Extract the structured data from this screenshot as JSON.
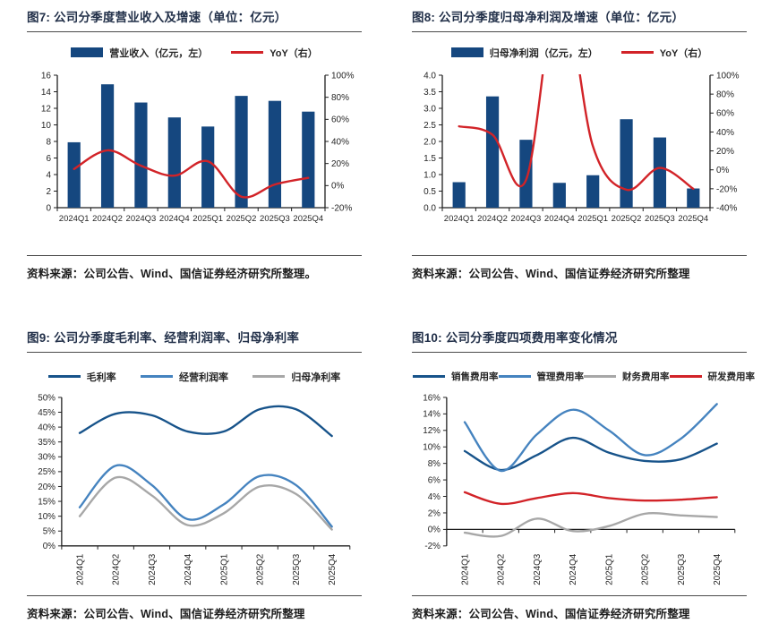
{
  "colors": {
    "bar_navy": "#15477F",
    "line_dark_blue": "#17538A",
    "line_light_blue": "#4583BF",
    "line_gray": "#A7A7A7",
    "line_red": "#D22328",
    "axis": "#1f1f1f",
    "tick_text": "#262626",
    "title_text": "#223049",
    "rule": "#4a4a4a"
  },
  "panels": [
    {
      "title": "图7: 公司分季度营业收入及增速（单位：亿元）",
      "source": "资料来源：公司公告、Wind、国信证券经济研究所整理。"
    },
    {
      "title": "图8: 公司分季度归母净利润及增速（单位：亿元）",
      "source": "资料来源：公司公告、Wind、国信证券经济研究所整理"
    },
    {
      "title": "图9: 公司分季度毛利率、经营利润率、归母净利率",
      "source": "资料来源：公司公告、Wind、国信证券经济研究所整理"
    },
    {
      "title": "图10: 公司分季度四项费用率变化情况",
      "source": "资料来源：公司公告、Wind、国信证券经济研究所整理"
    }
  ],
  "chart_data": [
    {
      "type": "bar",
      "title": "图7: 公司分季度营业收入及增速（单位：亿元）",
      "categories": [
        "2024Q1",
        "2024Q2",
        "2024Q3",
        "2024Q4",
        "2025Q1",
        "2025Q2",
        "2025Q3",
        "2025Q4"
      ],
      "series": [
        {
          "name": "营业收入（亿元，左）",
          "kind": "bar",
          "axis": "left",
          "color": "#15477F",
          "values": [
            7.9,
            14.9,
            12.7,
            10.9,
            9.8,
            13.5,
            12.9,
            11.6
          ]
        },
        {
          "name": "YoY（右）",
          "kind": "line",
          "axis": "right",
          "color": "#D22328",
          "unit": "%",
          "values": [
            15,
            32,
            18,
            9,
            22,
            -10,
            1,
            7
          ]
        }
      ],
      "left_axis": {
        "min": 0,
        "max": 16,
        "step": 2
      },
      "right_axis": {
        "min": -20,
        "max": 100,
        "step": 20,
        "unit": "%"
      },
      "legend_position": "top",
      "grid": false,
      "x_labels_rotated": false
    },
    {
      "type": "bar",
      "title": "图8: 公司分季度归母净利润及增速（单位：亿元）",
      "categories": [
        "2024Q1",
        "2024Q2",
        "2024Q3",
        "2024Q4",
        "2025Q1",
        "2025Q2",
        "2025Q3",
        "2025Q4"
      ],
      "series": [
        {
          "name": "归母净利润（亿元，左）",
          "kind": "bar",
          "axis": "left",
          "color": "#15477F",
          "values": [
            0.77,
            3.36,
            2.05,
            0.75,
            0.98,
            2.67,
            2.12,
            0.58
          ]
        },
        {
          "name": "YoY（右）",
          "kind": "line",
          "axis": "right",
          "color": "#D22328",
          "unit": "%",
          "values": [
            46,
            37,
            -11,
            null,
            25,
            -21,
            2,
            -20
          ],
          "note": "2024Q4 YoY exceeds the +100% axis maximum; curve is clipped above the plot"
        }
      ],
      "left_axis": {
        "min": 0,
        "max": 4,
        "step": 0.5,
        "decimals": 1
      },
      "right_axis": {
        "min": -40,
        "max": 100,
        "step": 20,
        "unit": "%"
      },
      "legend_position": "top",
      "grid": false,
      "x_labels_rotated": false
    },
    {
      "type": "line",
      "title": "图9: 公司分季度毛利率、经营利润率、归母净利率",
      "categories": [
        "2024Q1",
        "2024Q2",
        "2024Q3",
        "2024Q4",
        "2025Q1",
        "2025Q2",
        "2025Q3",
        "2025Q4"
      ],
      "series": [
        {
          "name": "毛利率",
          "kind": "line",
          "axis": "left",
          "color": "#17538A",
          "unit": "%",
          "values": [
            38,
            44.5,
            44,
            38.5,
            38.5,
            46,
            46,
            37
          ]
        },
        {
          "name": "经营利润率",
          "kind": "line",
          "axis": "left",
          "color": "#4583BF",
          "unit": "%",
          "values": [
            13,
            27,
            20.5,
            9,
            14,
            23.5,
            20.5,
            6.5
          ]
        },
        {
          "name": "归母净利率",
          "kind": "line",
          "axis": "left",
          "color": "#A7A7A7",
          "unit": "%",
          "values": [
            10,
            23,
            17,
            7,
            11,
            20,
            17.5,
            5.5
          ]
        }
      ],
      "left_axis": {
        "min": 0,
        "max": 50,
        "step": 5,
        "unit": "%"
      },
      "legend_position": "top",
      "grid": false,
      "x_labels_rotated": true
    },
    {
      "type": "line",
      "title": "图10: 公司分季度四项费用率变化情况",
      "categories": [
        "2024Q1",
        "2024Q2",
        "2024Q3",
        "2024Q4",
        "2025Q1",
        "2025Q2",
        "2025Q3",
        "2025Q4"
      ],
      "series": [
        {
          "name": "销售费用率",
          "kind": "line",
          "axis": "left",
          "color": "#17538A",
          "unit": "%",
          "values": [
            9.5,
            7.2,
            9.0,
            11.1,
            9.3,
            8.3,
            8.5,
            10.4
          ]
        },
        {
          "name": "管理费用率",
          "kind": "line",
          "axis": "left",
          "color": "#4583BF",
          "unit": "%",
          "values": [
            13.0,
            7.1,
            11.5,
            14.5,
            12.0,
            9.0,
            11.0,
            15.2
          ]
        },
        {
          "name": "财务费用率",
          "kind": "line",
          "axis": "left",
          "color": "#A7A7A7",
          "unit": "%",
          "values": [
            -0.4,
            -0.8,
            1.3,
            -0.2,
            0.4,
            1.9,
            1.7,
            1.5
          ]
        },
        {
          "name": "研发费用率",
          "kind": "line",
          "axis": "left",
          "color": "#D22328",
          "unit": "%",
          "values": [
            4.5,
            3.1,
            3.8,
            4.4,
            3.8,
            3.5,
            3.6,
            3.9
          ]
        }
      ],
      "left_axis": {
        "min": -2,
        "max": 16,
        "step": 2,
        "unit": "%"
      },
      "x_axis_at": 0,
      "legend_position": "top",
      "grid": false,
      "x_labels_rotated": true
    }
  ]
}
